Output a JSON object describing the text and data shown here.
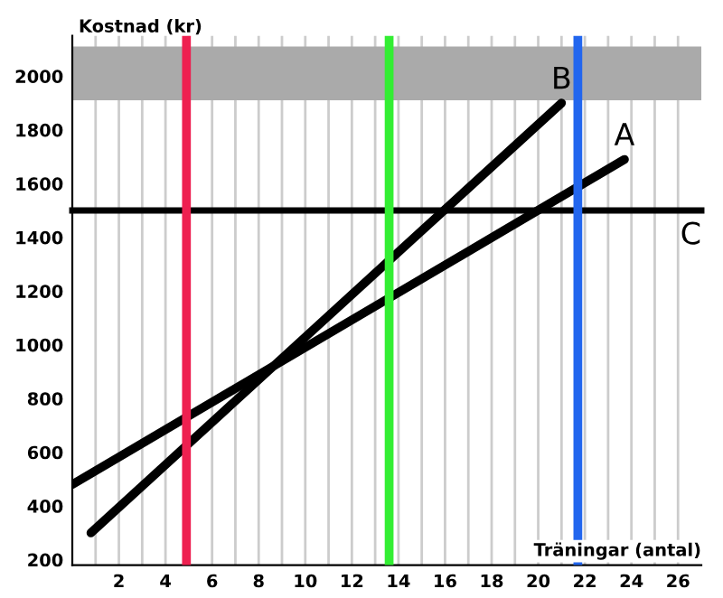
{
  "chart_data": {
    "type": "line",
    "xlabel": "Träningar (antal)",
    "ylabel": "Kostnad (kr)",
    "series": [
      {
        "name": "A",
        "color": "#000000",
        "x": [
          0,
          23.7
        ],
        "values": [
          480,
          1690
        ]
      },
      {
        "name": "B",
        "color": "#000000",
        "x": [
          0.8,
          21
        ],
        "values": [
          300,
          1900
        ]
      }
    ],
    "ref_lines": [
      {
        "axis": "y",
        "value": 1500,
        "label": "C",
        "color": "#000000"
      },
      {
        "axis": "x",
        "value": 4.9,
        "color": "#ee2050"
      },
      {
        "axis": "x",
        "value": 13.6,
        "color": "#33ee33"
      },
      {
        "axis": "x",
        "value": 21.7,
        "color": "#2266ee"
      }
    ],
    "bands": [
      {
        "axis": "y",
        "from": 1910,
        "to": 2110,
        "color": "#aaaaaa"
      }
    ],
    "xlim": [
      0,
      27
    ],
    "ylim": [
      180,
      2150
    ],
    "xticks": [
      {
        "value": 1,
        "label": null
      },
      2,
      {
        "value": 3,
        "label": null
      },
      4,
      {
        "value": 5,
        "label": null
      },
      6,
      {
        "value": 7,
        "label": null
      },
      8,
      {
        "value": 9,
        "label": null
      },
      10,
      {
        "value": 11,
        "label": null
      },
      12,
      {
        "value": 13,
        "label": null
      },
      14,
      {
        "value": 15,
        "label": null
      },
      16,
      {
        "value": 17,
        "label": null
      },
      18,
      {
        "value": 19,
        "label": null
      },
      20,
      {
        "value": 21,
        "label": null
      },
      22,
      {
        "value": 23,
        "label": null
      },
      24,
      {
        "value": 25,
        "label": null
      },
      26
    ],
    "yticks": [
      200,
      400,
      600,
      800,
      1000,
      1200,
      1400,
      1600,
      1800,
      2000
    ],
    "grid": "x",
    "legend": false,
    "marker": "none",
    "line_style": "solid"
  }
}
